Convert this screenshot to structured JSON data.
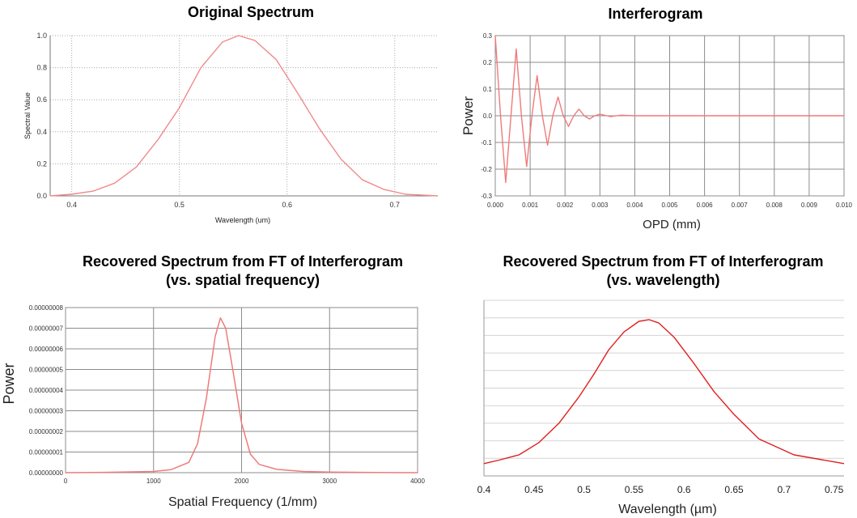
{
  "chart_data": [
    {
      "type": "line",
      "title": "Original Spectrum",
      "xlabel": "Wavelength (um)",
      "ylabel": "Spectral Value",
      "xlim": [
        0.38,
        0.74
      ],
      "ylim": [
        0,
        1.0
      ],
      "x_ticks": [
        "0.4",
        "0.5",
        "0.6",
        "0.7"
      ],
      "y_ticks": [
        "0.0",
        "0.2",
        "0.4",
        "0.6",
        "0.8",
        "1.0"
      ],
      "grid": "dotted",
      "series": [
        {
          "name": "spectrum",
          "x": [
            0.38,
            0.4,
            0.42,
            0.44,
            0.46,
            0.48,
            0.5,
            0.52,
            0.54,
            0.555,
            0.57,
            0.59,
            0.61,
            0.63,
            0.65,
            0.67,
            0.69,
            0.71,
            0.74
          ],
          "y": [
            0.0,
            0.01,
            0.03,
            0.08,
            0.18,
            0.35,
            0.55,
            0.8,
            0.96,
            1.0,
            0.97,
            0.85,
            0.64,
            0.42,
            0.23,
            0.1,
            0.04,
            0.01,
            0.0
          ]
        }
      ]
    },
    {
      "type": "line",
      "title": "Interferogram",
      "xlabel": "OPD (mm)",
      "ylabel": "Power",
      "xlim": [
        0.0,
        0.01
      ],
      "ylim": [
        -0.3,
        0.3
      ],
      "x_ticks": [
        "0.000",
        "0.001",
        "0.002",
        "0.003",
        "0.004",
        "0.005",
        "0.006",
        "0.007",
        "0.008",
        "0.009",
        "0.010"
      ],
      "y_ticks": [
        "0.3",
        "0.2",
        "0.1",
        "0.0",
        "-0.1",
        "-0.2",
        "-0.3"
      ],
      "grid": "solid",
      "series": [
        {
          "name": "interferogram",
          "x": [
            0.0,
            0.00015,
            0.0003,
            0.00045,
            0.0006,
            0.00075,
            0.0009,
            0.00105,
            0.0012,
            0.00135,
            0.0015,
            0.00165,
            0.0018,
            0.00195,
            0.0021,
            0.00225,
            0.0024,
            0.00255,
            0.0027,
            0.00285,
            0.003,
            0.0033,
            0.0036,
            0.004,
            0.01
          ],
          "y": [
            0.3,
            0.0,
            -0.25,
            0.0,
            0.25,
            0.0,
            -0.19,
            0.0,
            0.15,
            0.0,
            -0.11,
            0.0,
            0.07,
            0.0,
            -0.04,
            0.0,
            0.025,
            0.0,
            -0.012,
            0.0,
            0.006,
            -0.003,
            0.002,
            0.0,
            0.0
          ]
        }
      ]
    },
    {
      "type": "line",
      "title": "Recovered Spectrum from FT of Interferogram (vs. spatial frequency)",
      "title_lines": [
        "Recovered Spectrum from FT of Interferogram",
        "(vs. spatial frequency)"
      ],
      "xlabel": "Spatial Frequency (1/mm)",
      "ylabel": "Power",
      "xlim": [
        0,
        4000
      ],
      "ylim": [
        0,
        8e-08
      ],
      "x_ticks": [
        "0",
        "1000",
        "2000",
        "3000",
        "4000"
      ],
      "y_ticks": [
        "0.00000008",
        "0.00000007",
        "0.00000006",
        "0.00000005",
        "0.00000004",
        "0.00000003",
        "0.00000002",
        "0.00000001",
        "0.00000000"
      ],
      "grid": "solid",
      "series": [
        {
          "name": "recovered",
          "x": [
            0,
            500,
            1000,
            1200,
            1400,
            1500,
            1600,
            1700,
            1760,
            1820,
            1900,
            2000,
            2100,
            2200,
            2400,
            2700,
            3000,
            3500,
            4000
          ],
          "y": [
            0.0,
            2e-10,
            6e-10,
            1.5e-09,
            5e-09,
            1.4e-08,
            3.6e-08,
            6.6e-08,
            7.5e-08,
            7e-08,
            5e-08,
            2.4e-08,
            9e-09,
            4e-09,
            1.6e-09,
            6e-10,
            3e-10,
            1e-10,
            0.0
          ]
        }
      ]
    },
    {
      "type": "line",
      "title": "Recovered Spectrum from FT of Interferogram (vs. wavelength)",
      "title_lines": [
        "Recovered Spectrum from FT of Interferogram",
        "(vs. wavelength)"
      ],
      "xlabel": "Wavelength (µm)",
      "ylabel": "",
      "xlim": [
        0.4,
        0.76
      ],
      "ylim": [
        0,
        1
      ],
      "x_ticks": [
        "0.4",
        "0.45",
        "0.5",
        "0.55",
        "0.6",
        "0.65",
        "0.7",
        "0.75"
      ],
      "y_gridlines": 10,
      "grid": "horizontal",
      "series": [
        {
          "name": "recovered-wavelength",
          "x": [
            0.4,
            0.415,
            0.435,
            0.455,
            0.475,
            0.495,
            0.51,
            0.525,
            0.54,
            0.555,
            0.565,
            0.575,
            0.59,
            0.61,
            0.63,
            0.65,
            0.675,
            0.71,
            0.76
          ],
          "y": [
            0.07,
            0.09,
            0.12,
            0.19,
            0.3,
            0.45,
            0.58,
            0.72,
            0.82,
            0.88,
            0.89,
            0.87,
            0.79,
            0.64,
            0.48,
            0.35,
            0.21,
            0.12,
            0.07
          ]
        }
      ]
    }
  ]
}
